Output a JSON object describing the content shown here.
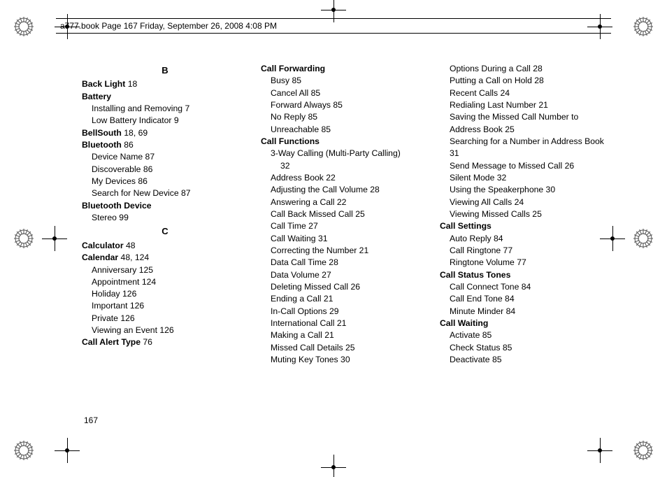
{
  "meta": {
    "header": "a777.book  Page 167  Friday, September 26, 2008  4:08 PM"
  },
  "pagenum": "167",
  "letters": {
    "B": "B",
    "C": "C"
  },
  "col1": [
    {
      "t": "letter",
      "k": "B"
    },
    {
      "t": "head",
      "label": "Back Light",
      "pg": " 18"
    },
    {
      "t": "head",
      "label": "Battery",
      "pg": ""
    },
    {
      "t": "sub",
      "label": "Installing and Removing",
      "pg": " 7"
    },
    {
      "t": "sub",
      "label": "Low Battery Indicator",
      "pg": " 9"
    },
    {
      "t": "head",
      "label": "BellSouth",
      "pg": " 18, 69"
    },
    {
      "t": "head",
      "label": "Bluetooth",
      "pg": " 86"
    },
    {
      "t": "sub",
      "label": "Device Name",
      "pg": " 87"
    },
    {
      "t": "sub",
      "label": "Discoverable",
      "pg": " 86"
    },
    {
      "t": "sub",
      "label": "My Devices",
      "pg": " 86"
    },
    {
      "t": "sub",
      "label": "Search for New Device",
      "pg": " 87"
    },
    {
      "t": "head",
      "label": "Bluetooth Device",
      "pg": ""
    },
    {
      "t": "sub",
      "label": "Stereo",
      "pg": " 99"
    },
    {
      "t": "letter",
      "k": "C"
    },
    {
      "t": "head",
      "label": "Calculator",
      "pg": " 48"
    },
    {
      "t": "head",
      "label": "Calendar",
      "pg": " 48, 124"
    },
    {
      "t": "sub",
      "label": "Anniversary",
      "pg": " 125"
    },
    {
      "t": "sub",
      "label": "Appointment",
      "pg": " 124"
    },
    {
      "t": "sub",
      "label": "Holiday",
      "pg": " 126"
    },
    {
      "t": "sub",
      "label": "Important",
      "pg": " 126"
    },
    {
      "t": "sub",
      "label": "Private",
      "pg": " 126"
    },
    {
      "t": "sub",
      "label": "Viewing an Event",
      "pg": " 126"
    },
    {
      "t": "head",
      "label": "Call Alert Type",
      "pg": " 76"
    }
  ],
  "col2": [
    {
      "t": "head",
      "label": "Call Forwarding",
      "pg": ""
    },
    {
      "t": "sub",
      "label": "Busy",
      "pg": " 85"
    },
    {
      "t": "sub",
      "label": "Cancel All",
      "pg": " 85"
    },
    {
      "t": "sub",
      "label": "Forward Always",
      "pg": " 85"
    },
    {
      "t": "sub",
      "label": "No Reply",
      "pg": " 85"
    },
    {
      "t": "sub",
      "label": "Unreachable",
      "pg": " 85"
    },
    {
      "t": "head",
      "label": "Call Functions",
      "pg": ""
    },
    {
      "t": "sub",
      "label": "3-Way Calling (Multi-Party Calling)",
      "pg": ""
    },
    {
      "t": "sub2",
      "label": "32",
      "pg": ""
    },
    {
      "t": "sub",
      "label": "Address Book",
      "pg": " 22"
    },
    {
      "t": "sub",
      "label": "Adjusting the Call Volume",
      "pg": " 28"
    },
    {
      "t": "sub",
      "label": "Answering a Call",
      "pg": " 22"
    },
    {
      "t": "sub",
      "label": "Call Back Missed Call",
      "pg": " 25"
    },
    {
      "t": "sub",
      "label": "Call Time",
      "pg": " 27"
    },
    {
      "t": "sub",
      "label": "Call Waiting",
      "pg": " 31"
    },
    {
      "t": "sub",
      "label": "Correcting the Number",
      "pg": " 21"
    },
    {
      "t": "sub",
      "label": "Data Call Time",
      "pg": " 28"
    },
    {
      "t": "sub",
      "label": "Data Volume",
      "pg": " 27"
    },
    {
      "t": "sub",
      "label": "Deleting Missed Call",
      "pg": " 26"
    },
    {
      "t": "sub",
      "label": "Ending a Call",
      "pg": " 21"
    },
    {
      "t": "sub",
      "label": "In-Call Options",
      "pg": " 29"
    },
    {
      "t": "sub",
      "label": "International Call",
      "pg": " 21"
    },
    {
      "t": "sub",
      "label": "Making a Call",
      "pg": " 21"
    },
    {
      "t": "sub",
      "label": "Missed Call Details",
      "pg": " 25"
    },
    {
      "t": "sub",
      "label": "Muting Key Tones",
      "pg": " 30"
    }
  ],
  "col3": [
    {
      "t": "sub",
      "label": "Options During a Call",
      "pg": " 28"
    },
    {
      "t": "sub",
      "label": "Putting a Call on Hold",
      "pg": " 28"
    },
    {
      "t": "sub",
      "label": "Recent Calls",
      "pg": " 24"
    },
    {
      "t": "sub",
      "label": "Redialing Last Number",
      "pg": " 21"
    },
    {
      "t": "sub",
      "label": "Saving the Missed Call Number to Address Book",
      "pg": " 25"
    },
    {
      "t": "sub",
      "label": "Searching for a Number in Address Book",
      "pg": " 31"
    },
    {
      "t": "sub",
      "label": "Send Message to Missed Call",
      "pg": " 26"
    },
    {
      "t": "sub",
      "label": "Silent Mode",
      "pg": " 32"
    },
    {
      "t": "sub",
      "label": "Using the Speakerphone",
      "pg": " 30"
    },
    {
      "t": "sub",
      "label": "Viewing All Calls",
      "pg": " 24"
    },
    {
      "t": "sub",
      "label": "Viewing Missed Calls",
      "pg": " 25"
    },
    {
      "t": "head",
      "label": "Call Settings",
      "pg": ""
    },
    {
      "t": "sub",
      "label": "Auto Reply",
      "pg": " 84"
    },
    {
      "t": "sub",
      "label": "Call Ringtone",
      "pg": " 77"
    },
    {
      "t": "sub",
      "label": "Ringtone Volume",
      "pg": " 77"
    },
    {
      "t": "head",
      "label": "Call Status Tones",
      "pg": ""
    },
    {
      "t": "sub",
      "label": "Call Connect Tone",
      "pg": " 84"
    },
    {
      "t": "sub",
      "label": "Call End Tone",
      "pg": " 84"
    },
    {
      "t": "sub",
      "label": "Minute Minder",
      "pg": " 84"
    },
    {
      "t": "head",
      "label": "Call Waiting",
      "pg": ""
    },
    {
      "t": "sub",
      "label": "Activate",
      "pg": " 85"
    },
    {
      "t": "sub",
      "label": "Check Status",
      "pg": " 85"
    },
    {
      "t": "sub",
      "label": "Deactivate",
      "pg": " 85"
    }
  ],
  "reg": {
    "radial_stroke": "#555555"
  }
}
